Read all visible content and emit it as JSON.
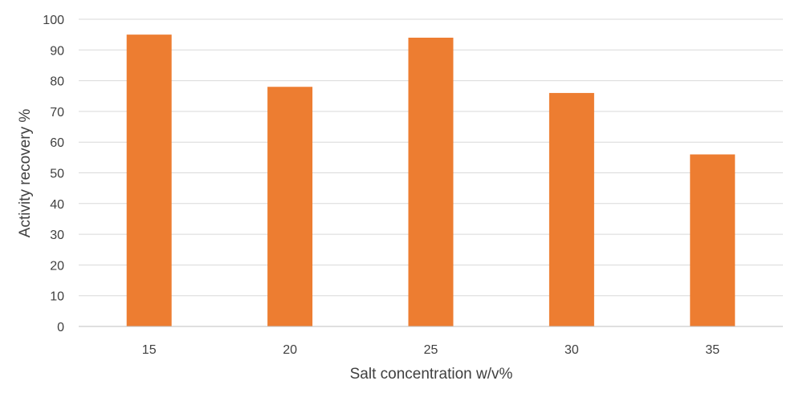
{
  "chart_data": {
    "type": "bar",
    "categories": [
      "15",
      "20",
      "25",
      "30",
      "35"
    ],
    "values": [
      95,
      78,
      94,
      76,
      56
    ],
    "xlabel": "Salt concentration w/v%",
    "ylabel": "Activity recovery %",
    "ylim": [
      0,
      100
    ],
    "yticks": [
      0,
      10,
      20,
      30,
      40,
      50,
      60,
      70,
      80,
      90,
      100
    ],
    "grid": true,
    "bar_color": "#ed7d31"
  }
}
